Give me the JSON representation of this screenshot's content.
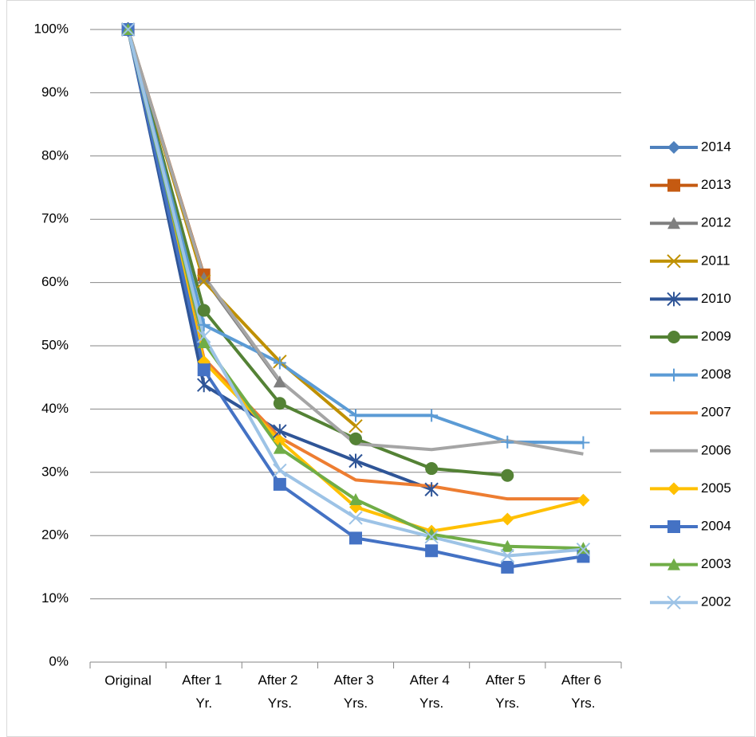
{
  "chart_data": {
    "type": "line",
    "categories": [
      "Original",
      "After 1 Yr.",
      "After 2 Yrs.",
      "After 3 Yrs.",
      "After 4 Yrs.",
      "After 5 Yrs.",
      "After 6 Yrs."
    ],
    "ylim": [
      0,
      100
    ],
    "yticks": [
      {
        "value": 0,
        "label": "0%"
      },
      {
        "value": 10,
        "label": "10%"
      },
      {
        "value": 20,
        "label": "20%"
      },
      {
        "value": 30,
        "label": "30%"
      },
      {
        "value": 40,
        "label": "40%"
      },
      {
        "value": 50,
        "label": "50%"
      },
      {
        "value": 60,
        "label": "60%"
      },
      {
        "value": 70,
        "label": "70%"
      },
      {
        "value": 80,
        "label": "80%"
      },
      {
        "value": 90,
        "label": "90%"
      },
      {
        "value": 100,
        "label": "100%"
      }
    ],
    "grid": true,
    "legend": "right",
    "series": [
      {
        "name": "2014",
        "color": "#4f81bd",
        "marker": "diamond",
        "values": [
          100,
          null,
          null,
          null,
          null,
          null,
          null
        ]
      },
      {
        "name": "2013",
        "color": "#c55a11",
        "marker": "square",
        "values": [
          100,
          61.2,
          null,
          null,
          null,
          null,
          null
        ]
      },
      {
        "name": "2012",
        "color": "#7f7f7f",
        "marker": "triangle",
        "values": [
          100,
          60.7,
          44.3,
          null,
          null,
          null,
          null
        ]
      },
      {
        "name": "2011",
        "color": "#bf9000",
        "marker": "x",
        "values": [
          100,
          60.2,
          47.5,
          37.3,
          null,
          null,
          null
        ]
      },
      {
        "name": "2010",
        "color": "#2f5597",
        "marker": "star",
        "values": [
          100,
          43.8,
          36.5,
          31.8,
          27.3,
          null,
          null
        ]
      },
      {
        "name": "2009",
        "color": "#548235",
        "marker": "circle",
        "values": [
          100,
          55.6,
          40.9,
          35.3,
          30.6,
          29.5,
          null
        ]
      },
      {
        "name": "2008",
        "color": "#5b9bd5",
        "marker": "plus",
        "values": [
          100,
          53.3,
          47.3,
          39.0,
          39.0,
          34.8,
          34.7
        ]
      },
      {
        "name": "2007",
        "color": "#ed7d31",
        "marker": "none",
        "values": [
          100,
          48.0,
          35.5,
          28.8,
          27.8,
          25.8,
          25.8
        ]
      },
      {
        "name": "2006",
        "color": "#a5a5a5",
        "marker": "none",
        "values": [
          100,
          61.0,
          44.5,
          34.5,
          33.6,
          35.0,
          32.9
        ]
      },
      {
        "name": "2005",
        "color": "#ffc000",
        "marker": "diamond",
        "values": [
          100,
          47.5,
          35.0,
          24.5,
          20.7,
          22.6,
          25.6
        ]
      },
      {
        "name": "2004",
        "color": "#4472c4",
        "marker": "square",
        "values": [
          100,
          46.2,
          28.1,
          19.6,
          17.6,
          15.0,
          16.7
        ]
      },
      {
        "name": "2003",
        "color": "#70ad47",
        "marker": "triangle",
        "values": [
          100,
          50.5,
          33.8,
          25.7,
          20.2,
          18.3,
          18.0
        ]
      },
      {
        "name": "2002",
        "color": "#9dc3e6",
        "marker": "x",
        "values": [
          100,
          51.5,
          30.3,
          22.8,
          19.8,
          16.8,
          17.8
        ]
      }
    ]
  }
}
